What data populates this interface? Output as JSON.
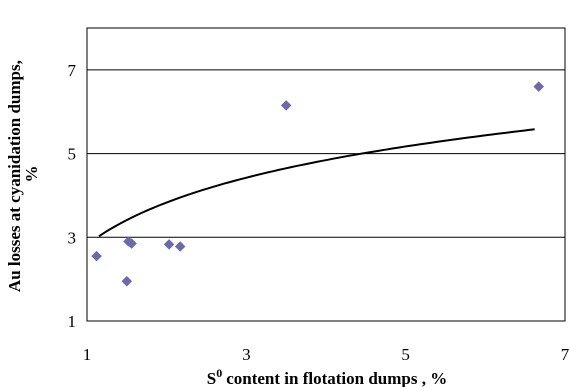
{
  "chart_data": {
    "type": "scatter",
    "title": "",
    "xlabel": "content in flotation dumps , %",
    "xlabel_prefix": "S",
    "xlabel_superscript": "0",
    "ylabel": "Au losses at cyanidation dumps, %",
    "ylabel_lines": [
      "Au losses at cyanidation dumps,",
      "%"
    ],
    "xlim": [
      1,
      7
    ],
    "ylim": [
      1,
      8
    ],
    "x_ticks": [
      "1",
      "3",
      "5",
      "7"
    ],
    "y_ticks": [
      "1",
      "3",
      "5",
      "7"
    ],
    "grid": "horizontal",
    "legend": "none",
    "series": [
      {
        "marker": "diamond",
        "color": "#6b6baa",
        "points": [
          {
            "x": 1.12,
            "y": 2.55
          },
          {
            "x": 1.5,
            "y": 1.95
          },
          {
            "x": 1.52,
            "y": 2.9
          },
          {
            "x": 1.56,
            "y": 2.85
          },
          {
            "x": 2.03,
            "y": 2.83
          },
          {
            "x": 2.17,
            "y": 2.78
          },
          {
            "x": 3.5,
            "y": 6.15
          },
          {
            "x": 6.67,
            "y": 6.6
          }
        ]
      }
    ],
    "trendline": {
      "type": "log",
      "color": "#000000",
      "x_range": [
        1.15,
        6.62
      ],
      "a": 1.46,
      "b": 2.82
    }
  }
}
